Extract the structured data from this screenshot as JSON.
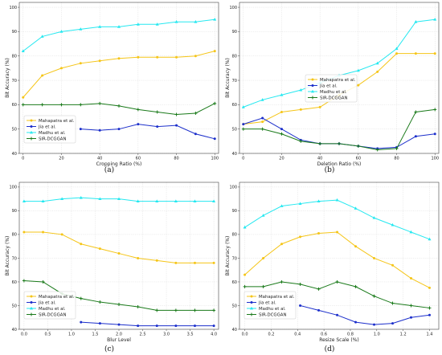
{
  "chart_data": [
    {
      "type": "line",
      "caption": "(a)",
      "xlabel": "Cropping Ratio (%)",
      "ylabel": "Bit Accuracy (%)",
      "xlim": [
        -2,
        102
      ],
      "ylim": [
        40,
        102
      ],
      "xticks": [
        0,
        20,
        40,
        60,
        80,
        100
      ],
      "yticks": [
        40,
        50,
        60,
        70,
        80,
        90,
        100
      ],
      "grid": true,
      "legend": "lower-left",
      "series": [
        {
          "name": "Mahapatra et al.",
          "color": "#f5c518",
          "marker": "dot",
          "x": [
            0,
            10,
            20,
            30,
            40,
            50,
            60,
            70,
            80,
            90,
            100
          ],
          "y": [
            63,
            72,
            75,
            77,
            78,
            79,
            79.5,
            79.5,
            79.5,
            80,
            82
          ]
        },
        {
          "name": "Jia et al.",
          "color": "#1c2fcb",
          "marker": "dot",
          "x": [
            30,
            40,
            50,
            60,
            70,
            80,
            90,
            100
          ],
          "y": [
            50,
            49.5,
            50,
            52,
            51,
            51.5,
            48,
            46
          ]
        },
        {
          "name": "Madhu et al.",
          "color": "#26e8f0",
          "marker": "tri",
          "x": [
            0,
            10,
            20,
            30,
            40,
            50,
            60,
            70,
            80,
            90,
            100
          ],
          "y": [
            82,
            88,
            90,
            91,
            92,
            92,
            93,
            93,
            94,
            94,
            95
          ]
        },
        {
          "name": "SIR-DCGGAN",
          "color": "#1a7a1a",
          "marker": "plus",
          "x": [
            0,
            10,
            20,
            30,
            40,
            50,
            60,
            70,
            80,
            90,
            100
          ],
          "y": [
            60,
            60,
            60,
            60,
            60.5,
            59.5,
            58,
            57,
            56,
            56.5,
            60.5
          ]
        }
      ]
    },
    {
      "type": "line",
      "caption": "(b)",
      "xlabel": "Deletion Ratio (%)",
      "ylabel": "Bit Accuracy (%)",
      "xlim": [
        -2,
        102
      ],
      "ylim": [
        40,
        102
      ],
      "xticks": [
        0,
        20,
        40,
        60,
        80,
        100
      ],
      "yticks": [
        40,
        50,
        60,
        70,
        80,
        90,
        100
      ],
      "grid": true,
      "legend": "center-right",
      "series": [
        {
          "name": "Mahapatra et al.",
          "color": "#f5c518",
          "marker": "dot",
          "x": [
            0,
            10,
            20,
            30,
            40,
            50,
            60,
            70,
            80,
            90,
            100
          ],
          "y": [
            52,
            53,
            57,
            58,
            59,
            64,
            68,
            73.5,
            81,
            81,
            81
          ]
        },
        {
          "name": "Jia et al.",
          "color": "#1c2fcb",
          "marker": "dot",
          "x": [
            0,
            10,
            20,
            30,
            40,
            50,
            60,
            70,
            80,
            90,
            100
          ],
          "y": [
            52,
            54.5,
            50,
            45.5,
            44,
            44,
            43,
            42,
            42.5,
            47,
            48
          ]
        },
        {
          "name": "Madhu et al.",
          "color": "#26e8f0",
          "marker": "tri",
          "x": [
            0,
            10,
            20,
            30,
            40,
            50,
            60,
            70,
            80,
            90,
            100
          ],
          "y": [
            59,
            62,
            64,
            66,
            69,
            72,
            74,
            77,
            83,
            94,
            95
          ]
        },
        {
          "name": "SIR-DCGGAN",
          "color": "#1a7a1a",
          "marker": "plus",
          "x": [
            0,
            10,
            20,
            30,
            40,
            50,
            60,
            70,
            80,
            90,
            100
          ],
          "y": [
            50,
            50,
            48,
            45,
            44,
            44,
            43,
            41.5,
            42,
            57,
            58
          ]
        }
      ]
    },
    {
      "type": "line",
      "caption": "(c)",
      "xlabel": "Blur Level",
      "ylabel": "Bit Accuracy (%)",
      "xlim": [
        -0.1,
        4.1
      ],
      "ylim": [
        40,
        102
      ],
      "xticks": [
        0.0,
        0.5,
        1.0,
        1.5,
        2.0,
        2.5,
        3.0,
        3.5,
        4.0
      ],
      "yticks": [
        40,
        50,
        60,
        70,
        80,
        90,
        100
      ],
      "tick_decimals": 1,
      "grid": true,
      "legend": "lower-left",
      "series": [
        {
          "name": "Mahapatra et al.",
          "color": "#f5c518",
          "marker": "dot",
          "x": [
            0.0,
            0.4,
            0.8,
            1.2,
            1.6,
            2.0,
            2.4,
            2.8,
            3.2,
            3.6,
            4.0
          ],
          "y": [
            81,
            81,
            80,
            76,
            74,
            72,
            70,
            69,
            68,
            68,
            68
          ]
        },
        {
          "name": "Jia et al.",
          "color": "#1c2fcb",
          "marker": "dot",
          "x": [
            1.2,
            1.6,
            2.0,
            2.4,
            2.8,
            3.2,
            3.6,
            4.0
          ],
          "y": [
            43,
            42.5,
            42,
            41.5,
            41.5,
            41.5,
            41.5,
            41.5
          ]
        },
        {
          "name": "Madhu et al.",
          "color": "#26e8f0",
          "marker": "tri",
          "x": [
            0.0,
            0.4,
            0.8,
            1.2,
            1.6,
            2.0,
            2.4,
            2.8,
            3.2,
            3.6,
            4.0
          ],
          "y": [
            94,
            94,
            95,
            95.5,
            95,
            95,
            94,
            94,
            94,
            94,
            94
          ]
        },
        {
          "name": "SIR-DCGGAN",
          "color": "#1a7a1a",
          "marker": "plus",
          "x": [
            0.0,
            0.4,
            0.8,
            1.2,
            1.6,
            2.0,
            2.4,
            2.8,
            3.2,
            3.6,
            4.0
          ],
          "y": [
            60.5,
            60,
            55,
            53,
            51.5,
            50.5,
            49.5,
            48,
            48,
            48,
            48
          ]
        }
      ]
    },
    {
      "type": "line",
      "caption": "(d)",
      "xlabel": "Resize Scale (%)",
      "ylabel": "Bit Accuracy (%)",
      "xlim": [
        -0.04,
        1.47
      ],
      "ylim": [
        40,
        102
      ],
      "xticks": [
        0.0,
        0.2,
        0.4,
        0.6,
        0.8,
        1.0,
        1.2,
        1.4
      ],
      "yticks": [
        40,
        50,
        60,
        70,
        80,
        90,
        100
      ],
      "tick_decimals": 1,
      "grid": true,
      "legend": "lower-left",
      "series": [
        {
          "name": "Mahapatra et al.",
          "color": "#f5c518",
          "marker": "dot",
          "x": [
            0.0,
            0.14,
            0.28,
            0.42,
            0.56,
            0.7,
            0.84,
            0.98,
            1.12,
            1.26,
            1.4
          ],
          "y": [
            63,
            70,
            76,
            79,
            80.5,
            81,
            75,
            70,
            67,
            61.5,
            57.5
          ]
        },
        {
          "name": "Jia et al.",
          "color": "#1c2fcb",
          "marker": "dot",
          "x": [
            0.42,
            0.56,
            0.7,
            0.84,
            0.98,
            1.12,
            1.26,
            1.4
          ],
          "y": [
            50,
            48,
            46,
            43,
            42,
            42.5,
            45,
            46
          ]
        },
        {
          "name": "Madhu et al.",
          "color": "#26e8f0",
          "marker": "tri",
          "x": [
            0.0,
            0.14,
            0.28,
            0.42,
            0.56,
            0.7,
            0.84,
            0.98,
            1.12,
            1.26,
            1.4
          ],
          "y": [
            83,
            88,
            92,
            93,
            94,
            94.5,
            91,
            87,
            84,
            81,
            78
          ]
        },
        {
          "name": "SIR-DCGGAN",
          "color": "#1a7a1a",
          "marker": "plus",
          "x": [
            0.0,
            0.14,
            0.28,
            0.42,
            0.56,
            0.7,
            0.84,
            0.98,
            1.12,
            1.26,
            1.4
          ],
          "y": [
            58,
            58,
            60,
            59,
            57,
            60,
            58,
            54,
            51,
            50,
            49
          ]
        }
      ]
    }
  ]
}
